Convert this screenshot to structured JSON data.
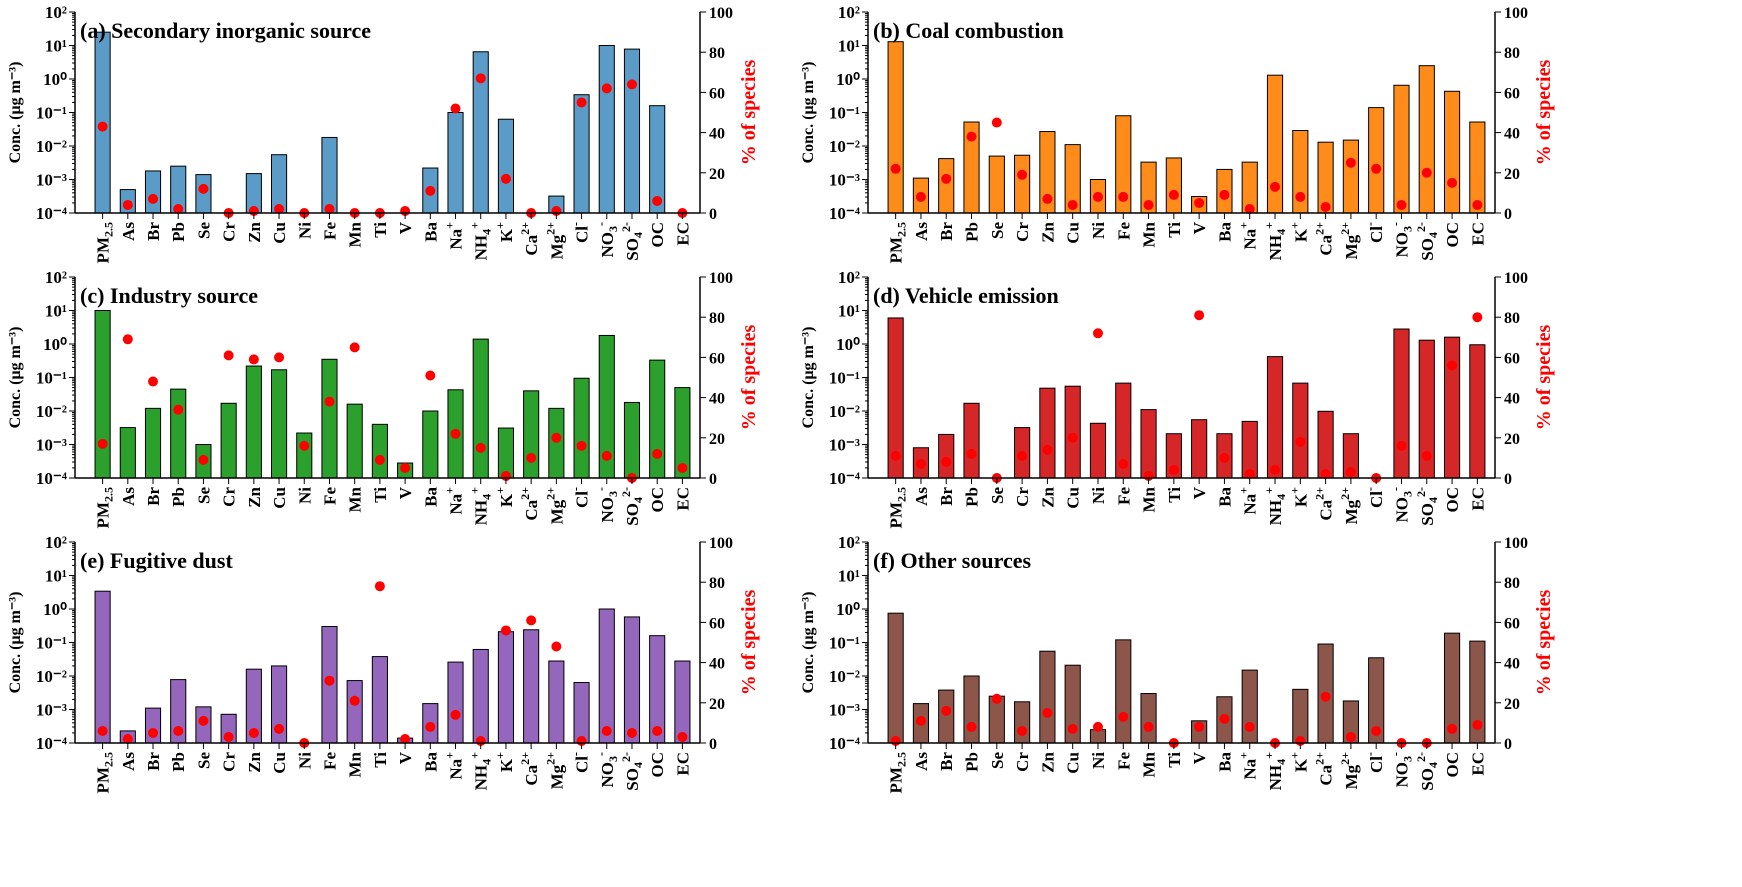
{
  "chart_data": {
    "type": "bar",
    "categories": [
      "PM2.5",
      "As",
      "Br",
      "Pb",
      "Se",
      "Cr",
      "Zn",
      "Cu",
      "Ni",
      "Fe",
      "Mn",
      "Ti",
      "V",
      "Ba",
      "Na+",
      "NH4+",
      "K+",
      "Ca2+",
      "Mg2+",
      "Cl-",
      "NO3-",
      "SO42-",
      "OC",
      "EC"
    ],
    "category_labels": [
      [
        "PM",
        "2.5",
        ""
      ],
      [
        "As",
        "",
        ""
      ],
      [
        "Br",
        "",
        ""
      ],
      [
        "Pb",
        "",
        ""
      ],
      [
        "Se",
        "",
        ""
      ],
      [
        "Cr",
        "",
        ""
      ],
      [
        "Zn",
        "",
        ""
      ],
      [
        "Cu",
        "",
        ""
      ],
      [
        "Ni",
        "",
        ""
      ],
      [
        "Fe",
        "",
        ""
      ],
      [
        "Mn",
        "",
        ""
      ],
      [
        "Ti",
        "",
        ""
      ],
      [
        "V",
        "",
        ""
      ],
      [
        "Ba",
        "",
        ""
      ],
      [
        "Na",
        "",
        "+"
      ],
      [
        "NH",
        "4",
        "+"
      ],
      [
        "K",
        "",
        "+"
      ],
      [
        "Ca",
        "",
        "2+"
      ],
      [
        "Mg",
        "",
        "2+"
      ],
      [
        "Cl",
        "",
        "-"
      ],
      [
        "NO",
        "3",
        "-"
      ],
      [
        "SO",
        "4",
        "2-"
      ],
      [
        "OC",
        "",
        ""
      ],
      [
        "EC",
        "",
        ""
      ]
    ],
    "ylabel": "Conc. (μg m⁻³)",
    "y2label": "% of species",
    "ylim": [
      0.0001,
      100
    ],
    "y_scale": "log",
    "y2lim": [
      0,
      100
    ],
    "yticks": [
      "10⁻⁴",
      "10⁻³",
      "10⁻²",
      "10⁻¹",
      "10⁰",
      "10¹",
      "10²"
    ],
    "y2ticks": [
      "0",
      "20",
      "40",
      "60",
      "80",
      "100"
    ],
    "dot_color": "#ff0000",
    "panels": [
      {
        "title": "(a) Secondary inorganic source",
        "color": "#5b9bc8",
        "conc": [
          25,
          0.0005,
          0.0018,
          0.0025,
          0.0014,
          null,
          0.0015,
          0.0055,
          null,
          0.018,
          null,
          null,
          null,
          0.0022,
          0.1,
          6.5,
          0.063,
          null,
          0.00032,
          0.34,
          10,
          7.8,
          0.16,
          null
        ],
        "percent": [
          43,
          4,
          7,
          2,
          12,
          0,
          1,
          2,
          0,
          2,
          0,
          0,
          1,
          11,
          52,
          67,
          17,
          0,
          1,
          55,
          62,
          64,
          6,
          0
        ]
      },
      {
        "title": "(b) Coal combustion",
        "color": "#ff8c1a",
        "conc": [
          13,
          0.0011,
          0.0042,
          0.052,
          0.005,
          0.0053,
          0.027,
          0.011,
          0.001,
          0.08,
          0.0033,
          0.0044,
          0.00031,
          0.002,
          0.0033,
          1.3,
          0.029,
          0.013,
          0.015,
          0.14,
          0.65,
          2.5,
          0.43,
          0.052
        ],
        "percent": [
          22,
          8,
          17,
          38,
          45,
          19,
          7,
          4,
          8,
          8,
          4,
          9,
          5,
          9,
          2,
          13,
          8,
          3,
          25,
          22,
          4,
          20,
          15,
          4
        ]
      },
      {
        "title": "(c) Industry source",
        "color": "#2ca02c",
        "conc": [
          10,
          0.0032,
          0.012,
          0.045,
          0.001,
          0.017,
          0.22,
          0.17,
          0.0022,
          0.35,
          0.016,
          0.004,
          0.00028,
          0.01,
          0.043,
          1.4,
          0.0031,
          0.04,
          0.012,
          0.095,
          1.8,
          0.018,
          0.33,
          0.05
        ],
        "percent": [
          17,
          69,
          48,
          34,
          9,
          61,
          59,
          60,
          16,
          38,
          65,
          9,
          5,
          51,
          22,
          15,
          1,
          10,
          20,
          16,
          11,
          0,
          12,
          5
        ]
      },
      {
        "title": "(d) Vehicle emission",
        "color": "#d62728",
        "conc": [
          6,
          0.0008,
          0.002,
          0.017,
          null,
          0.0032,
          0.048,
          0.055,
          0.0043,
          0.068,
          0.011,
          0.0021,
          0.0055,
          0.0021,
          0.0049,
          0.42,
          0.068,
          0.0098,
          0.0021,
          null,
          2.8,
          1.3,
          1.6,
          0.95
        ],
        "percent": [
          11,
          7,
          8,
          12,
          0,
          11,
          14,
          20,
          72,
          7,
          1,
          4,
          81,
          10,
          2,
          4,
          18,
          2,
          3,
          0,
          16,
          11,
          56,
          80
        ]
      },
      {
        "title": "(e) Fugitive dust",
        "color": "#9467bd",
        "conc": [
          3.4,
          0.00023,
          0.0011,
          0.0078,
          0.0012,
          0.00072,
          0.016,
          0.02,
          null,
          0.3,
          0.0073,
          0.038,
          0.00014,
          0.0015,
          0.026,
          0.062,
          0.21,
          0.24,
          0.028,
          0.0064,
          1.0,
          0.58,
          0.16,
          0.028
        ],
        "percent": [
          6,
          2,
          5,
          6,
          11,
          3,
          5,
          7,
          0,
          31,
          21,
          78,
          2,
          8,
          14,
          1,
          56,
          61,
          48,
          1,
          6,
          5,
          6,
          3
        ]
      },
      {
        "title": "(f) Other sources",
        "color": "#8c564b",
        "conc": [
          0.75,
          0.0015,
          0.0038,
          0.01,
          0.0025,
          0.0017,
          0.055,
          0.021,
          0.00025,
          0.12,
          0.003,
          null,
          0.00046,
          0.0024,
          0.015,
          null,
          0.004,
          0.09,
          0.0018,
          0.035,
          null,
          null,
          0.19,
          0.11
        ],
        "percent": [
          1,
          11,
          16,
          8,
          22,
          6,
          15,
          7,
          8,
          13,
          8,
          0,
          8,
          12,
          8,
          0,
          1,
          23,
          3,
          6,
          0,
          0,
          7,
          9
        ]
      }
    ]
  }
}
